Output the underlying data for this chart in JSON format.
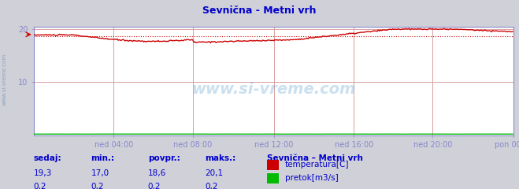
{
  "title": "Sevnična - Metni vrh",
  "bg_color": "#d0d0d8",
  "plot_bg_color": "#ffffff",
  "grid_color": "#d8a0a0",
  "text_color": "#0000cc",
  "x_labels": [
    "ned 04:00",
    "ned 08:00",
    "ned 12:00",
    "ned 16:00",
    "ned 20:00",
    "pon 00:00"
  ],
  "x_ticks_norm": [
    0.1667,
    0.3333,
    0.5,
    0.6667,
    0.8333,
    1.0
  ],
  "n_points": 432,
  "temp_min": 17.0,
  "temp_max": 20.1,
  "temp_avg": 18.6,
  "pretok_val": 0.2,
  "ylim": [
    0,
    20.5
  ],
  "ytick_vals": [
    10,
    20
  ],
  "temp_color": "#cc0000",
  "pretok_color": "#00bb00",
  "avg_line_color": "#cc0000",
  "legend_title": "Sevnična – Metni vrh",
  "footer_labels": [
    "sedaj:",
    "min.:",
    "povpr.:",
    "maks.:"
  ],
  "footer_temp": [
    "19,3",
    "17,0",
    "18,6",
    "20,1"
  ],
  "footer_pretok": [
    "0,2",
    "0,2",
    "0,2",
    "0,2"
  ],
  "series_labels": [
    "temperatura[C]",
    "pretok[m3/s]"
  ],
  "watermark": "www.si-vreme.com",
  "left_label": "www.si-vreme.com",
  "spine_color": "#8888cc",
  "tick_color": "#8888cc"
}
